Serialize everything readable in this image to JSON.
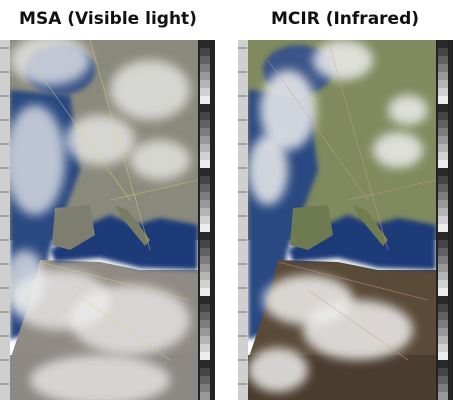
{
  "panels": [
    {
      "title": "MSA (Visible light)"
    },
    {
      "title": "MCIR (Infrared)"
    }
  ]
}
